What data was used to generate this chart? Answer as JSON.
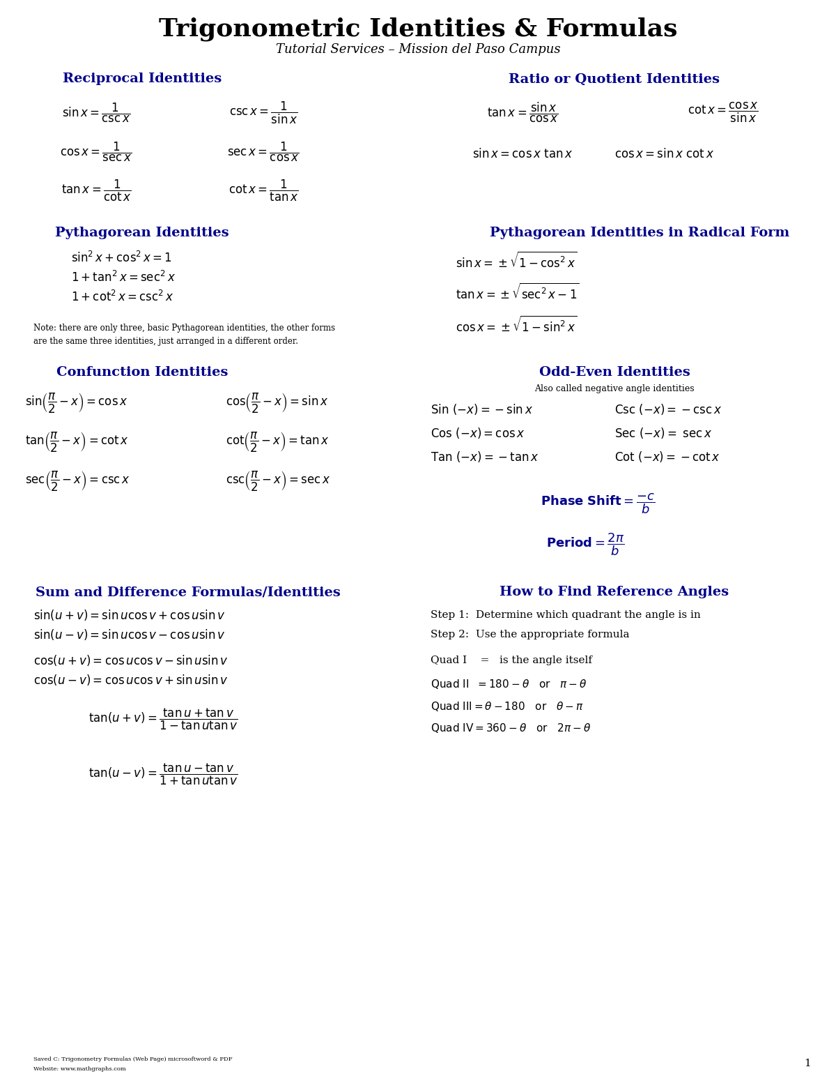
{
  "title": "Trigonometric Identities & Formulas",
  "subtitle": "Tutorial Services – Mission del Paso Campus",
  "bg_color": "#ffffff",
  "text_color": "#000000",
  "heading_color": "#00008B",
  "title_fontsize": 26,
  "subtitle_fontsize": 13,
  "heading_fontsize": 14,
  "body_fontsize": 12,
  "sections": {
    "reciprocal_title": "Reciprocal Identities",
    "ratio_title": "Ratio or Quotient Identities",
    "pythagorean_title": "Pythagorean Identities",
    "pythagorean_radical_title": "Pythagorean Identities in Radical Form",
    "cofunction_title": "Confunction Identities",
    "odd_even_title": "Odd-Even Identities",
    "odd_even_subtitle": "Also called negative angle identities",
    "sum_diff_title": "Sum and Difference Formulas/Identities",
    "ref_angle_title": "How to Find Reference Angles"
  }
}
